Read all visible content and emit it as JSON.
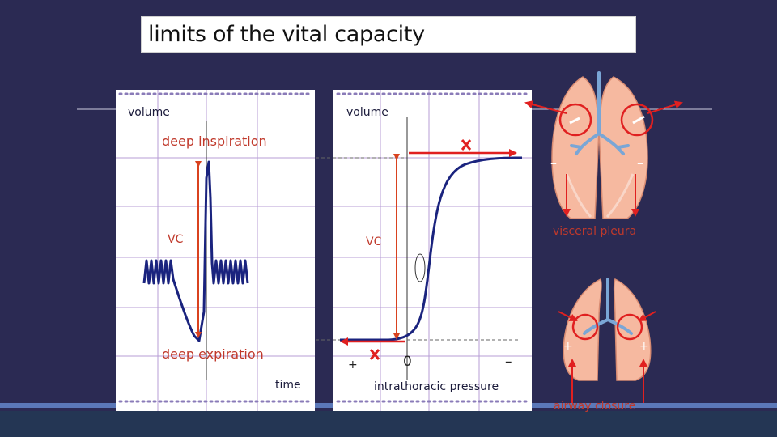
{
  "title": "limits of the vital capacity",
  "left_graph": {
    "y_label": "volume",
    "x_label": "time",
    "deep_inspiration": "deep inspiration",
    "deep_expiration": "deep expiration",
    "vc": "VC"
  },
  "right_graph": {
    "y_label": "volume",
    "x_label": "intrathoracic pressure",
    "vc": "VC",
    "sign_plus": "+",
    "sign_zero": "0",
    "sign_minus": "–"
  },
  "lung_top": {
    "minus_left": "–",
    "minus_right": "–",
    "caption": "visceral pleura"
  },
  "lung_bottom": {
    "plus_left": "+",
    "plus_right": "+",
    "caption": "airway closure"
  },
  "colors": {
    "background": "#2b2a53",
    "curve": "#1a237e",
    "arrow": "#d9421f",
    "marker": "#e02020",
    "grid": "#b79cd6",
    "lung": "#f6b9a0"
  }
}
